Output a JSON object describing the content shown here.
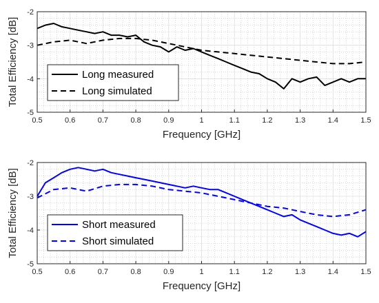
{
  "chart_data": [
    {
      "type": "line",
      "xlabel": "Frequency [GHz]",
      "ylabel": "Total Efficiency [dB]",
      "xlim": [
        0.5,
        1.5
      ],
      "ylim": [
        -5,
        -2
      ],
      "xticks": [
        0.5,
        0.6,
        0.7,
        0.8,
        0.9,
        1,
        1.1,
        1.2,
        1.3,
        1.4,
        1.5
      ],
      "yticks": [
        -5,
        -4,
        -3,
        -2
      ],
      "grid": true,
      "legend": "bottom-left",
      "series": [
        {
          "name": "Long measured",
          "color": "#000000",
          "style": "solid",
          "x": [
            0.5,
            0.525,
            0.55,
            0.575,
            0.6,
            0.625,
            0.65,
            0.675,
            0.7,
            0.725,
            0.75,
            0.775,
            0.8,
            0.825,
            0.85,
            0.875,
            0.9,
            0.925,
            0.95,
            0.975,
            1.0,
            1.025,
            1.05,
            1.075,
            1.1,
            1.125,
            1.15,
            1.175,
            1.2,
            1.225,
            1.25,
            1.275,
            1.3,
            1.325,
            1.35,
            1.375,
            1.4,
            1.425,
            1.45,
            1.475,
            1.5
          ],
          "y": [
            -2.5,
            -2.4,
            -2.35,
            -2.45,
            -2.5,
            -2.55,
            -2.6,
            -2.65,
            -2.6,
            -2.7,
            -2.7,
            -2.75,
            -2.7,
            -2.9,
            -3.0,
            -3.05,
            -3.2,
            -3.05,
            -3.15,
            -3.1,
            -3.2,
            -3.3,
            -3.4,
            -3.5,
            -3.6,
            -3.7,
            -3.8,
            -3.85,
            -4.0,
            -4.1,
            -4.3,
            -4.0,
            -4.1,
            -4.0,
            -3.95,
            -4.2,
            -4.1,
            -4.0,
            -4.1,
            -4.0,
            -4.0
          ]
        },
        {
          "name": "Long simulated",
          "color": "#000000",
          "style": "dashed",
          "x": [
            0.5,
            0.55,
            0.6,
            0.65,
            0.7,
            0.75,
            0.8,
            0.85,
            0.9,
            0.95,
            1.0,
            1.05,
            1.1,
            1.15,
            1.2,
            1.25,
            1.3,
            1.35,
            1.4,
            1.45,
            1.5
          ],
          "y": [
            -3.0,
            -2.9,
            -2.85,
            -2.95,
            -2.85,
            -2.8,
            -2.8,
            -2.85,
            -2.95,
            -3.05,
            -3.15,
            -3.2,
            -3.25,
            -3.3,
            -3.35,
            -3.4,
            -3.45,
            -3.5,
            -3.55,
            -3.55,
            -3.5
          ]
        }
      ]
    },
    {
      "type": "line",
      "xlabel": "Frequency [GHz]",
      "ylabel": "Total Efficiency [dB]",
      "xlim": [
        0.5,
        1.5
      ],
      "ylim": [
        -5,
        -2
      ],
      "xticks": [
        0.5,
        0.6,
        0.7,
        0.8,
        0.9,
        1,
        1.1,
        1.2,
        1.3,
        1.4,
        1.5
      ],
      "yticks": [
        -5,
        -4,
        -3,
        -2
      ],
      "grid": true,
      "legend": "bottom-left",
      "series": [
        {
          "name": "Short measured",
          "color": "#0000ff",
          "style": "solid",
          "x": [
            0.5,
            0.525,
            0.55,
            0.575,
            0.6,
            0.625,
            0.65,
            0.675,
            0.7,
            0.725,
            0.75,
            0.775,
            0.8,
            0.825,
            0.85,
            0.875,
            0.9,
            0.925,
            0.95,
            0.975,
            1.0,
            1.025,
            1.05,
            1.075,
            1.1,
            1.125,
            1.15,
            1.175,
            1.2,
            1.225,
            1.25,
            1.275,
            1.3,
            1.325,
            1.35,
            1.375,
            1.4,
            1.425,
            1.45,
            1.475,
            1.5
          ],
          "y": [
            -3.0,
            -2.6,
            -2.45,
            -2.3,
            -2.2,
            -2.15,
            -2.2,
            -2.25,
            -2.2,
            -2.3,
            -2.35,
            -2.4,
            -2.45,
            -2.5,
            -2.55,
            -2.6,
            -2.65,
            -2.7,
            -2.75,
            -2.7,
            -2.75,
            -2.8,
            -2.8,
            -2.9,
            -3.0,
            -3.1,
            -3.2,
            -3.3,
            -3.4,
            -3.5,
            -3.6,
            -3.55,
            -3.7,
            -3.8,
            -3.9,
            -4.0,
            -4.1,
            -4.15,
            -4.1,
            -4.2,
            -4.05
          ]
        },
        {
          "name": "Short simulated",
          "color": "#0000ff",
          "style": "dashed",
          "x": [
            0.5,
            0.55,
            0.6,
            0.65,
            0.7,
            0.75,
            0.8,
            0.85,
            0.9,
            0.95,
            1.0,
            1.05,
            1.1,
            1.15,
            1.2,
            1.25,
            1.3,
            1.35,
            1.4,
            1.45,
            1.5
          ],
          "y": [
            -3.05,
            -2.8,
            -2.75,
            -2.85,
            -2.7,
            -2.65,
            -2.65,
            -2.7,
            -2.8,
            -2.85,
            -2.9,
            -3.0,
            -3.1,
            -3.2,
            -3.3,
            -3.35,
            -3.45,
            -3.55,
            -3.6,
            -3.55,
            -3.4
          ]
        }
      ]
    }
  ]
}
